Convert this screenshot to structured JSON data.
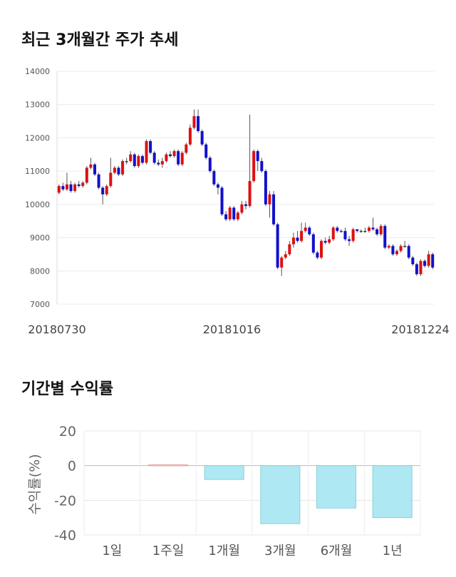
{
  "section1": {
    "title": "최근 3개월간 주가 추세"
  },
  "section2": {
    "title": "기간별 수익률"
  },
  "chart_data": [
    {
      "type": "candlestick",
      "y_ticks": [
        7000,
        8000,
        9000,
        10000,
        11000,
        12000,
        13000,
        14000
      ],
      "ylim": [
        7000,
        14000
      ],
      "x_tick_labels": [
        "20180730",
        "20181016",
        "20181224"
      ],
      "colors": {
        "up": "#dd1111",
        "down": "#1111cc",
        "wick": "#555555"
      },
      "candles": [
        [
          10350,
          10550,
          10300,
          10600
        ],
        [
          10550,
          10450,
          10400,
          10650
        ],
        [
          10450,
          10600,
          10400,
          10950
        ],
        [
          10600,
          10400,
          10350,
          10700
        ],
        [
          10400,
          10600,
          10350,
          10650
        ],
        [
          10600,
          10550,
          10500,
          10700
        ],
        [
          10550,
          10650,
          10500,
          10700
        ],
        [
          10650,
          11100,
          10600,
          11150
        ],
        [
          11100,
          11200,
          11050,
          11400
        ],
        [
          11200,
          10900,
          10850,
          11250
        ],
        [
          10900,
          10500,
          10450,
          10950
        ],
        [
          10500,
          10300,
          10000,
          10550
        ],
        [
          10300,
          10550,
          10250,
          10600
        ],
        [
          10550,
          10950,
          10500,
          11400
        ],
        [
          10950,
          11100,
          10900,
          11150
        ],
        [
          11100,
          10900,
          10850,
          11150
        ],
        [
          10900,
          11300,
          10850,
          11350
        ],
        [
          11300,
          11300,
          11200,
          11400
        ],
        [
          11300,
          11500,
          11250,
          11600
        ],
        [
          11500,
          11150,
          11100,
          11550
        ],
        [
          11150,
          11450,
          11100,
          11500
        ],
        [
          11450,
          11250,
          11200,
          11500
        ],
        [
          11250,
          11900,
          11200,
          11950
        ],
        [
          11900,
          11550,
          11500,
          11950
        ],
        [
          11550,
          11250,
          11200,
          11600
        ],
        [
          11250,
          11200,
          11150,
          11350
        ],
        [
          11200,
          11300,
          11100,
          11400
        ],
        [
          11300,
          11500,
          11250,
          11550
        ],
        [
          11500,
          11450,
          11400,
          11600
        ],
        [
          11450,
          11600,
          11400,
          11650
        ],
        [
          11600,
          11200,
          11150,
          11650
        ],
        [
          11200,
          11550,
          11150,
          11600
        ],
        [
          11550,
          11800,
          11500,
          11850
        ],
        [
          11800,
          12300,
          11750,
          12400
        ],
        [
          12300,
          12650,
          12250,
          12850
        ],
        [
          12650,
          12200,
          12150,
          12850
        ],
        [
          12200,
          11800,
          11750,
          12250
        ],
        [
          11800,
          11400,
          11350,
          11850
        ],
        [
          11400,
          11000,
          10950,
          11450
        ],
        [
          11000,
          10600,
          10550,
          11050
        ],
        [
          10600,
          10500,
          10300,
          10650
        ],
        [
          10500,
          9700,
          9650,
          10550
        ],
        [
          9700,
          9550,
          9500,
          9800
        ],
        [
          9550,
          9900,
          9500,
          9950
        ],
        [
          9900,
          9550,
          9500,
          9950
        ],
        [
          9550,
          9750,
          9500,
          9800
        ],
        [
          9750,
          10000,
          9700,
          10100
        ],
        [
          10000,
          9950,
          9850,
          10100
        ],
        [
          9950,
          10700,
          9900,
          12700
        ],
        [
          10700,
          11600,
          10650,
          11650
        ],
        [
          11600,
          11300,
          11000,
          11650
        ],
        [
          11300,
          11000,
          10950,
          11400
        ],
        [
          11000,
          10000,
          9950,
          11050
        ],
        [
          10000,
          10300,
          9600,
          10400
        ],
        [
          10300,
          9400,
          9350,
          10400
        ],
        [
          9400,
          8100,
          8050,
          9450
        ],
        [
          8100,
          8400,
          7850,
          8450
        ],
        [
          8400,
          8500,
          8350,
          8600
        ],
        [
          8500,
          8800,
          8450,
          8900
        ],
        [
          8800,
          9000,
          8700,
          9150
        ],
        [
          9000,
          8900,
          8850,
          9200
        ],
        [
          8900,
          9200,
          8850,
          9450
        ],
        [
          9200,
          9300,
          9150,
          9450
        ],
        [
          9300,
          9100,
          9050,
          9350
        ],
        [
          9100,
          8550,
          8500,
          9150
        ],
        [
          8550,
          8400,
          8350,
          8600
        ],
        [
          8400,
          8900,
          8350,
          8950
        ],
        [
          8900,
          8850,
          8800,
          9000
        ],
        [
          8850,
          8950,
          8800,
          9050
        ],
        [
          8950,
          9300,
          8900,
          9350
        ],
        [
          9300,
          9200,
          9150,
          9350
        ],
        [
          9200,
          9200,
          9150,
          9250
        ],
        [
          9200,
          8950,
          8900,
          9300
        ],
        [
          8950,
          8900,
          8750,
          9050
        ],
        [
          8900,
          9250,
          8850,
          9300
        ],
        [
          9250,
          9200,
          9150,
          9250
        ],
        [
          9200,
          9200,
          9150,
          9250
        ],
        [
          9200,
          9200,
          9150,
          9300
        ],
        [
          9200,
          9300,
          9150,
          9350
        ],
        [
          9300,
          9250,
          9200,
          9600
        ],
        [
          9250,
          9100,
          9050,
          9300
        ],
        [
          9100,
          9350,
          9050,
          9400
        ],
        [
          9350,
          8700,
          8650,
          9400
        ],
        [
          8700,
          8750,
          8650,
          8800
        ],
        [
          8750,
          8500,
          8450,
          8800
        ],
        [
          8500,
          8600,
          8450,
          8650
        ],
        [
          8600,
          8750,
          8550,
          8800
        ],
        [
          8750,
          8750,
          8700,
          8900
        ],
        [
          8750,
          8400,
          8350,
          8800
        ],
        [
          8400,
          8200,
          8150,
          8450
        ],
        [
          8200,
          7900,
          7850,
          8250
        ],
        [
          7900,
          8300,
          7850,
          8350
        ],
        [
          8300,
          8150,
          8100,
          8350
        ],
        [
          8150,
          8500,
          8100,
          8600
        ],
        [
          8500,
          8100,
          8050,
          8550
        ]
      ]
    },
    {
      "type": "bar",
      "ylabel": "수익률(%)",
      "categories": [
        "1일",
        "1주일",
        "1개월",
        "3개월",
        "6개월",
        "1년"
      ],
      "values": [
        0,
        0.5,
        -8,
        -33.5,
        -24.5,
        -30
      ],
      "y_ticks": [
        20,
        0,
        -20,
        -40
      ],
      "ylim": [
        -40,
        20
      ],
      "colors": {
        "positive": "#f5c9c2",
        "negative": "#aee8f2",
        "negative_border": "#8ccfdd"
      }
    }
  ]
}
